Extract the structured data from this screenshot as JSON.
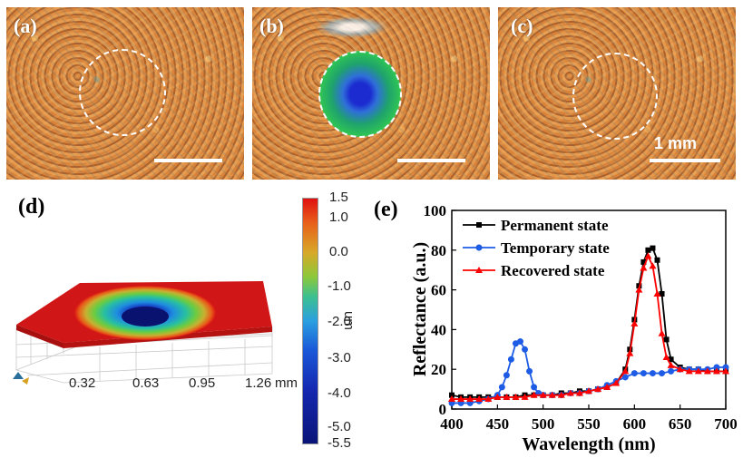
{
  "panels": {
    "a": {
      "label": "(a)"
    },
    "b": {
      "label": "(b)"
    },
    "c": {
      "label": "(c)",
      "scale_text": "1 mm"
    },
    "d": {
      "label": "(d)",
      "colorbar_ticks": [
        "1.5",
        "1.0",
        "0.0",
        "-1.0",
        "-2.0",
        "-3.0",
        "-4.0",
        "-5.0",
        "-5.5"
      ],
      "colorbar_unit": "um",
      "x_ticks": [
        "0.32",
        "0.63",
        "0.95",
        "1.26"
      ],
      "x_unit": "mm"
    },
    "e": {
      "label": "(e)"
    }
  },
  "colors": {
    "permanent": "#000000",
    "temporary": "#1e5ce6",
    "recovered": "#ff0000"
  },
  "chart_data": {
    "type": "line",
    "xlabel": "Wavelength (nm)",
    "ylabel": "Reflectance (a.u.)",
    "xlim": [
      400,
      700
    ],
    "ylim": [
      0,
      100
    ],
    "x_ticks": [
      400,
      450,
      500,
      550,
      600,
      650,
      700
    ],
    "y_ticks": [
      0,
      20,
      40,
      60,
      80,
      100
    ],
    "legend_position": "top-left",
    "series": [
      {
        "name": "Permanent state",
        "marker": "square",
        "x": [
          400,
          410,
          420,
          430,
          440,
          450,
          460,
          470,
          480,
          490,
          500,
          510,
          520,
          530,
          540,
          550,
          560,
          570,
          580,
          590,
          595,
          600,
          605,
          610,
          615,
          620,
          625,
          630,
          635,
          640,
          650,
          660,
          670,
          680,
          690,
          700
        ],
        "y": [
          7,
          6,
          6,
          6,
          6,
          6,
          6,
          6,
          7,
          7,
          7,
          7,
          8,
          8,
          9,
          9,
          10,
          11,
          13,
          20,
          30,
          45,
          62,
          74,
          80,
          81,
          75,
          58,
          35,
          25,
          21,
          20,
          20,
          19,
          19,
          19
        ]
      },
      {
        "name": "Temporary state",
        "marker": "circle",
        "x": [
          400,
          410,
          420,
          430,
          440,
          450,
          455,
          460,
          465,
          470,
          475,
          480,
          485,
          490,
          495,
          500,
          510,
          520,
          530,
          540,
          550,
          560,
          570,
          580,
          590,
          600,
          610,
          620,
          630,
          640,
          650,
          660,
          670,
          680,
          690,
          700
        ],
        "y": [
          3,
          3,
          3,
          4,
          5,
          7,
          11,
          17,
          25,
          33,
          34,
          30,
          19,
          11,
          8,
          7,
          7,
          7,
          8,
          8,
          9,
          10,
          12,
          14,
          16,
          18,
          18,
          18,
          18,
          19,
          20,
          20,
          20,
          20,
          21,
          21
        ]
      },
      {
        "name": "Recovered state",
        "marker": "triangle",
        "x": [
          400,
          410,
          420,
          430,
          440,
          450,
          460,
          470,
          480,
          490,
          500,
          510,
          520,
          530,
          540,
          550,
          560,
          570,
          580,
          590,
          595,
          600,
          605,
          610,
          615,
          620,
          625,
          630,
          635,
          640,
          650,
          660,
          670,
          680,
          690,
          700
        ],
        "y": [
          5,
          5,
          5,
          5,
          5,
          6,
          6,
          6,
          6,
          7,
          7,
          7,
          7,
          8,
          8,
          9,
          10,
          11,
          13,
          19,
          28,
          43,
          60,
          71,
          77,
          72,
          58,
          38,
          26,
          22,
          20,
          19,
          19,
          19,
          19,
          19
        ]
      }
    ]
  }
}
